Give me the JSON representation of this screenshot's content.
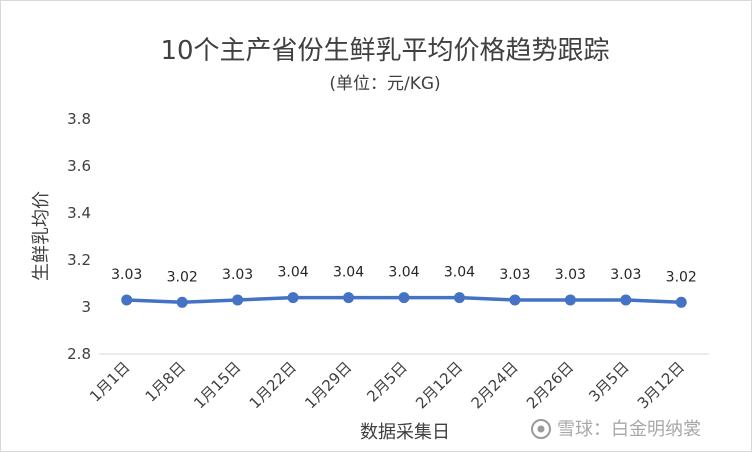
{
  "chart_data": {
    "type": "line",
    "title": "10个主产省份生鲜乳平均价格趋势跟踪",
    "subtitle": "(单位：元/KG)",
    "xlabel": "数据采集日",
    "ylabel": "生鲜乳均价",
    "categories": [
      "1月1日",
      "1月8日",
      "1月15日",
      "1月22日",
      "1月29日",
      "2月5日",
      "2月12日",
      "2月24日",
      "2月26日",
      "3月5日",
      "3月12日"
    ],
    "series": [
      {
        "values": [
          3.03,
          3.02,
          3.03,
          3.04,
          3.04,
          3.04,
          3.04,
          3.03,
          3.03,
          3.03,
          3.02
        ]
      }
    ],
    "ylim": [
      2.8,
      3.8
    ],
    "yticks": [
      "2.8",
      "3",
      "3.2",
      "3.4",
      "3.6",
      "3.8"
    ],
    "data_labels": [
      "3.03",
      "3.02",
      "3.03",
      "3.04",
      "3.04",
      "3.04",
      "3.04",
      "3.03",
      "3.03",
      "3.03",
      "3.02"
    ],
    "line_color": "#4472c4",
    "grid": false,
    "legend": "none"
  },
  "watermark": {
    "text": "雪球：白金明纳裳",
    "icon": "snowball-icon"
  }
}
